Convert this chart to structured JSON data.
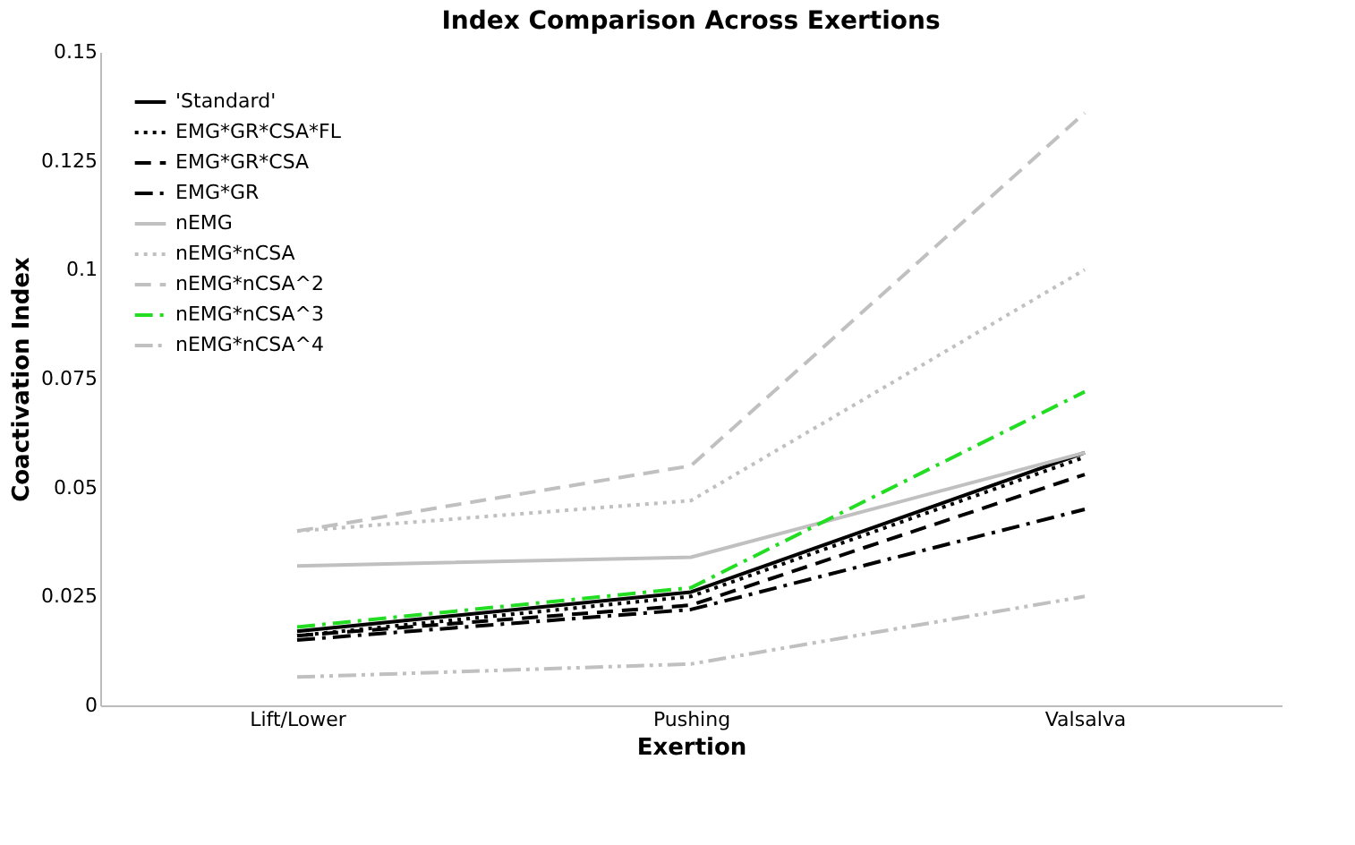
{
  "chart_data": {
    "type": "line",
    "title": "Index Comparison Across Exertions",
    "xlabel": "Exertion",
    "ylabel": "Coactivation Index",
    "categories": [
      "Lift/Lower",
      "Pushing",
      "Valsalva"
    ],
    "series": [
      {
        "name": "'Standard'",
        "color": "#000000",
        "line_style": "solid",
        "values": [
          0.017,
          0.026,
          0.058
        ]
      },
      {
        "name": "EMG*GR*CSA*FL",
        "color": "#000000",
        "line_style": "dotted",
        "values": [
          0.016,
          0.025,
          0.057
        ]
      },
      {
        "name": "EMG*GR*CSA",
        "color": "#000000",
        "line_style": "dashed",
        "values": [
          0.016,
          0.023,
          0.053
        ]
      },
      {
        "name": "EMG*GR",
        "color": "#000000",
        "line_style": "dashdot",
        "values": [
          0.015,
          0.022,
          0.045
        ]
      },
      {
        "name": "nEMG",
        "color": "#c0c0c0",
        "line_style": "solid",
        "values": [
          0.032,
          0.034,
          0.058
        ]
      },
      {
        "name": "nEMG*nCSA",
        "color": "#c0c0c0",
        "line_style": "dotted",
        "values": [
          0.04,
          0.047,
          0.1
        ]
      },
      {
        "name": "nEMG*nCSA^2",
        "color": "#c0c0c0",
        "line_style": "dashed",
        "values": [
          0.04,
          0.055,
          0.136
        ]
      },
      {
        "name": "nEMG*nCSA^3",
        "color": "#22dd22",
        "line_style": "dashdot",
        "values": [
          0.018,
          0.027,
          0.072
        ]
      },
      {
        "name": "nEMG*nCSA^4",
        "color": "#c0c0c0",
        "line_style": "dashdotdot",
        "values": [
          0.0065,
          0.0095,
          0.025
        ]
      }
    ],
    "ylim": [
      0,
      0.15
    ],
    "yticks": [
      0,
      0.025,
      0.05,
      0.075,
      0.1,
      0.125,
      0.15
    ],
    "grid": false,
    "legend": "top left",
    "marker": "none"
  }
}
